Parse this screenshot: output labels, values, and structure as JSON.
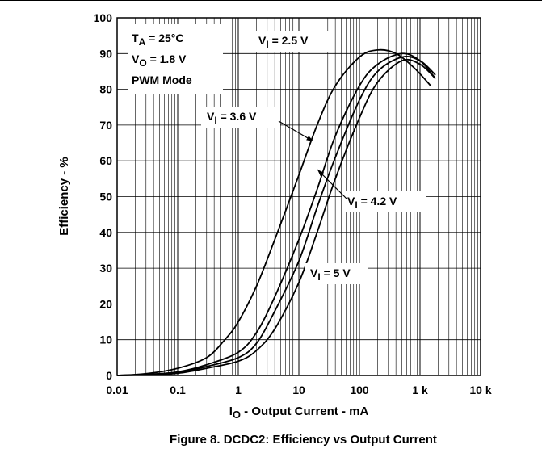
{
  "figure": {
    "caption": "Figure 8. DCDC2: Efficiency vs Output Current"
  },
  "chart_data": {
    "type": "line",
    "xscale": "log",
    "xlim": [
      0.01,
      10000
    ],
    "ylim": [
      0,
      100
    ],
    "grid": true,
    "xlabel": {
      "main": "I",
      "sub": "O",
      "rest": " - Output Current - mA"
    },
    "ylabel": "Efficiency - %",
    "x_ticks": [
      {
        "value": 0.01,
        "label": "0.01"
      },
      {
        "value": 0.1,
        "label": "0.1"
      },
      {
        "value": 1,
        "label": "1"
      },
      {
        "value": 10,
        "label": "10"
      },
      {
        "value": 100,
        "label": "100"
      },
      {
        "value": 1000,
        "label": "1 k"
      },
      {
        "value": 10000,
        "label": "10 k"
      }
    ],
    "y_ticks": [
      0,
      10,
      20,
      30,
      40,
      50,
      60,
      70,
      80,
      90,
      100
    ],
    "conditions": [
      {
        "main": "T",
        "sub": "A",
        "rest": " = 25°C"
      },
      {
        "main": "V",
        "sub": "O",
        "rest": " = 1.8 V"
      },
      {
        "main": "PWM Mode",
        "sub": "",
        "rest": ""
      }
    ],
    "series": [
      {
        "name": "VI = 2.5 V",
        "label": {
          "main": "V",
          "sub": "I",
          "rest": " = 2.5 V"
        },
        "x": [
          0.01,
          0.03,
          0.1,
          0.3,
          0.6,
          1,
          2,
          4,
          10,
          20,
          40,
          100,
          200,
          400,
          800,
          1500
        ],
        "y": [
          0,
          0.5,
          2,
          5,
          10,
          15,
          25,
          38,
          56,
          70,
          81,
          89,
          91,
          90,
          86,
          81
        ]
      },
      {
        "name": "VI = 3.6 V",
        "label": {
          "main": "V",
          "sub": "I",
          "rest": " = 3.6 V"
        },
        "x": [
          0.01,
          0.03,
          0.1,
          0.3,
          1,
          2,
          4,
          10,
          20,
          40,
          100,
          200,
          500,
          1000,
          1800
        ],
        "y": [
          0,
          0.3,
          1,
          3,
          6.5,
          12,
          22,
          38,
          52,
          67,
          81,
          87,
          90,
          88,
          83
        ]
      },
      {
        "name": "VI = 4.2 V",
        "label": {
          "main": "V",
          "sub": "I",
          "rest": " = 4.2 V"
        },
        "x": [
          0.01,
          0.03,
          0.1,
          0.3,
          1,
          2,
          4,
          10,
          20,
          40,
          100,
          200,
          500,
          1000,
          1800
        ],
        "y": [
          0,
          0.2,
          0.8,
          2.5,
          5,
          9,
          18,
          32,
          47,
          61,
          77,
          85,
          89,
          88,
          84
        ]
      },
      {
        "name": "VI = 5 V",
        "label": {
          "main": "V",
          "sub": "I",
          "rest": " = 5 V"
        },
        "x": [
          0.01,
          0.03,
          0.1,
          0.3,
          1,
          2,
          4,
          10,
          20,
          40,
          100,
          200,
          500,
          1000,
          1800
        ],
        "y": [
          0,
          0.2,
          0.6,
          2,
          4,
          7,
          13,
          26,
          40,
          55,
          72,
          82,
          88,
          87,
          83
        ]
      }
    ]
  }
}
